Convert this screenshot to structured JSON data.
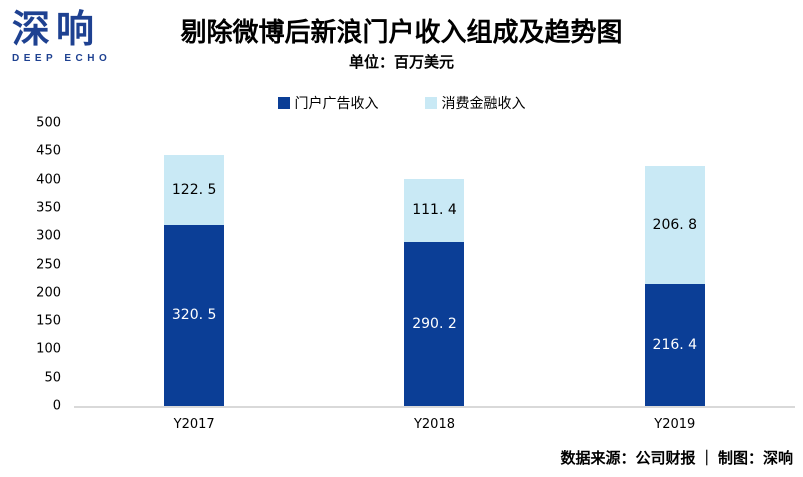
{
  "logo": {
    "text": "深响",
    "subtext": "DEEP ECHO",
    "color": "#1e4191"
  },
  "header": {
    "title": "剔除微博后新浪门户收入组成及趋势图",
    "subtitle": "单位：百万美元"
  },
  "legend": [
    {
      "label": "门户广告收入",
      "color": "#0b3e96"
    },
    {
      "label": "消费金融收入",
      "color": "#c9e9f5"
    }
  ],
  "chart_data": {
    "type": "bar",
    "stacked": true,
    "title": "剔除微博后新浪门户收入组成及趋势图",
    "unit_label": "单位：百万美元",
    "categories": [
      "Y2017",
      "Y2018",
      "Y2019"
    ],
    "series": [
      {
        "name": "门户广告收入",
        "color": "#0b3e96",
        "label_color": "#ffffff",
        "values": [
          320.5,
          290.2,
          216.4
        ],
        "labels": [
          "320. 5",
          "290. 2",
          "216. 4"
        ]
      },
      {
        "name": "消费金融收入",
        "color": "#c9e9f5",
        "label_color": "#000000",
        "values": [
          122.5,
          111.4,
          206.8
        ],
        "labels": [
          "122. 5",
          "111. 4",
          "206. 8"
        ]
      }
    ],
    "ylim": [
      0,
      500
    ],
    "yticks": [
      0,
      50,
      100,
      150,
      200,
      250,
      300,
      350,
      400,
      450,
      500
    ],
    "grid": false,
    "legend_position": "top",
    "baseline_color": "#d9d9d9"
  },
  "footer": {
    "source": "数据来源：公司财报 ｜ 制图：深响"
  }
}
